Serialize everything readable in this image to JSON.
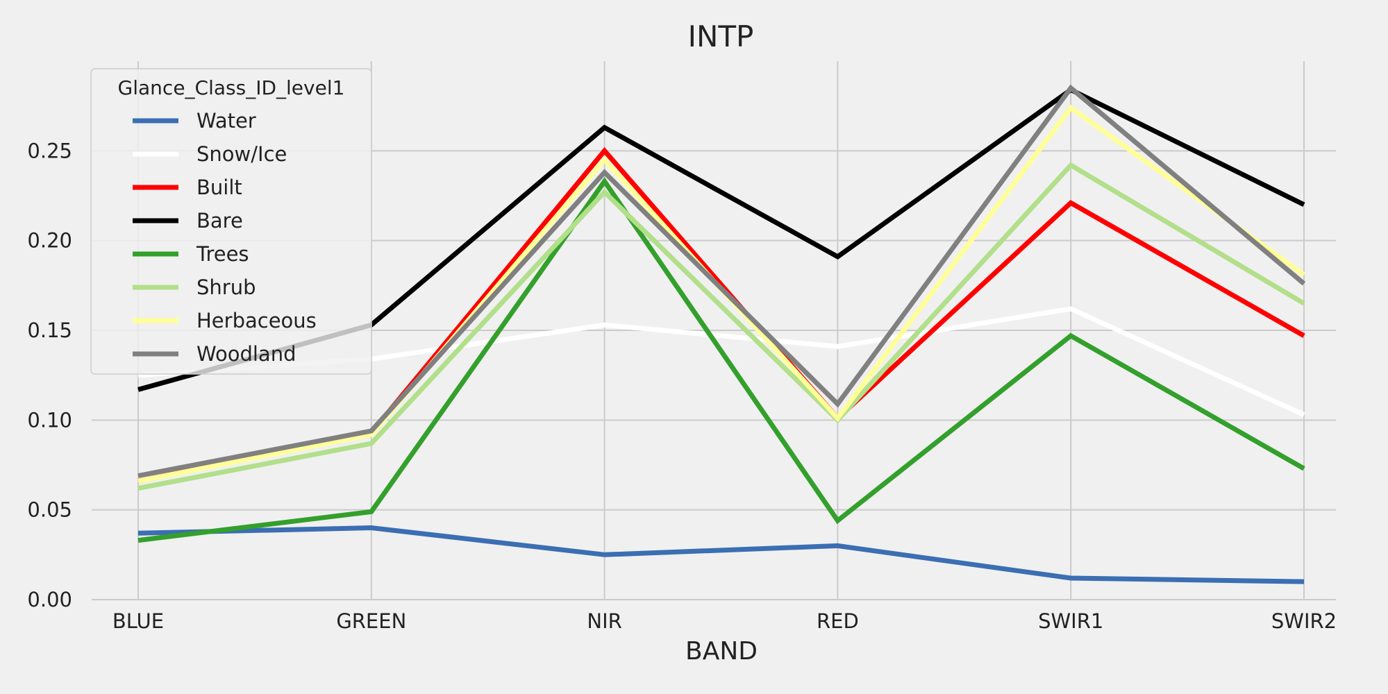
{
  "chart_data": {
    "type": "line",
    "title": "INTP",
    "xlabel": "BAND",
    "ylabel": "",
    "categories": [
      "BLUE",
      "GREEN",
      "NIR",
      "RED",
      "SWIR1",
      "SWIR2"
    ],
    "ylim": [
      0,
      0.3
    ],
    "yticks": [
      0.0,
      0.05,
      0.1,
      0.15,
      0.2,
      0.25
    ],
    "ytick_labels": [
      "0.00",
      "0.05",
      "0.10",
      "0.15",
      "0.20",
      "0.25"
    ],
    "grid": true,
    "legend": {
      "title": "Glance_Class_ID_level1",
      "placement": "top-left"
    },
    "series": [
      {
        "name": "Water",
        "color": "#3b6eb2",
        "values": [
          0.037,
          0.04,
          0.025,
          0.03,
          0.012,
          0.01
        ]
      },
      {
        "name": "Snow/Ice",
        "color": "#ffffff",
        "values": [
          0.125,
          0.134,
          0.153,
          0.141,
          0.162,
          0.103
        ]
      },
      {
        "name": "Built",
        "color": "#ff0000",
        "values": [
          0.066,
          0.093,
          0.25,
          0.101,
          0.221,
          0.147
        ]
      },
      {
        "name": "Bare",
        "color": "#000000",
        "values": [
          0.117,
          0.153,
          0.263,
          0.191,
          0.284,
          0.22
        ]
      },
      {
        "name": "Trees",
        "color": "#33a02c",
        "values": [
          0.033,
          0.049,
          0.233,
          0.044,
          0.147,
          0.073
        ]
      },
      {
        "name": "Shrub",
        "color": "#b2df8a",
        "values": [
          0.062,
          0.087,
          0.227,
          0.1,
          0.242,
          0.165
        ]
      },
      {
        "name": "Herbaceous",
        "color": "#ffff99",
        "values": [
          0.066,
          0.092,
          0.245,
          0.101,
          0.274,
          0.181
        ]
      },
      {
        "name": "Woodland",
        "color": "#808080",
        "values": [
          0.069,
          0.094,
          0.238,
          0.109,
          0.285,
          0.176
        ]
      }
    ]
  }
}
